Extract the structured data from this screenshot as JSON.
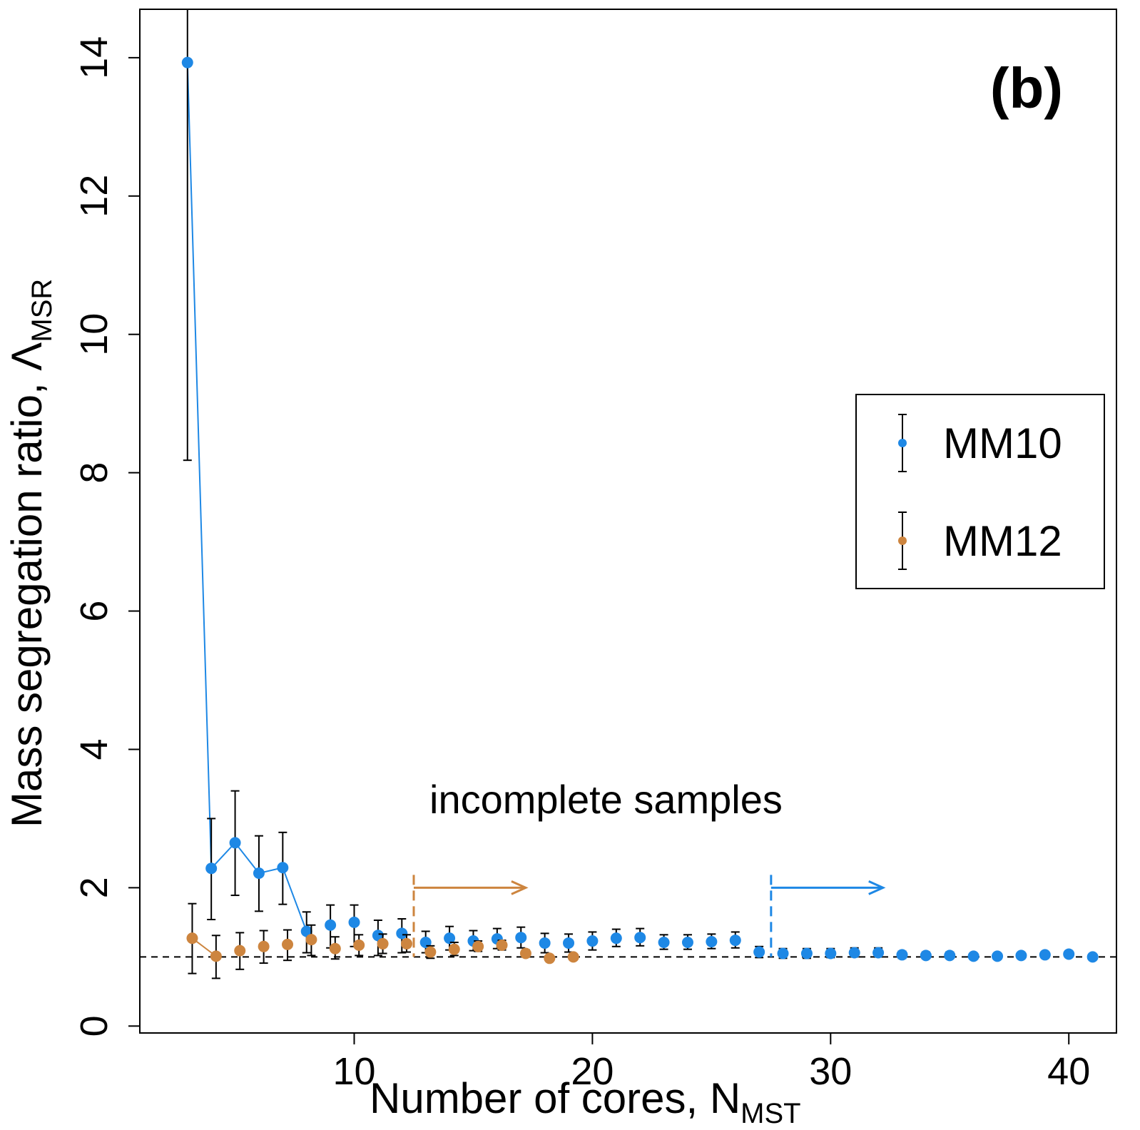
{
  "chart_data": {
    "type": "scatter",
    "panel_label": "(b)",
    "xlabel_main": "Number of cores, N",
    "xlabel_sub": "MST",
    "ylabel_main": "Mass segregation ratio, Λ",
    "ylabel_sub": "MSR",
    "xlim": [
      1.0,
      42.0
    ],
    "ylim": [
      -0.1,
      14.7
    ],
    "x_ticks": [
      10,
      20,
      30,
      40
    ],
    "y_ticks": [
      0,
      2,
      4,
      6,
      8,
      10,
      12,
      14
    ],
    "reference_line_y": 1.0,
    "annotation": "incomplete samples",
    "incomplete_markers": [
      {
        "series": "MM12",
        "x": 12.5,
        "arrow_to_x": 17.2,
        "y_top": 2.0
      },
      {
        "series": "MM10",
        "x": 27.5,
        "arrow_to_x": 32.2,
        "y_top": 2.0
      }
    ],
    "legend_position": "center-right",
    "series": [
      {
        "name": "MM10",
        "color": "#1E88E5",
        "x": [
          3,
          4,
          5,
          6,
          7,
          8,
          9,
          10,
          11,
          12,
          13,
          14,
          15,
          16,
          17,
          18,
          19,
          20,
          21,
          22,
          23,
          24,
          25,
          26,
          27,
          28,
          29,
          30,
          31,
          32,
          33,
          34,
          35,
          36,
          37,
          38,
          39,
          40,
          41
        ],
        "y": [
          13.93,
          2.28,
          2.65,
          2.21,
          2.29,
          1.37,
          1.46,
          1.5,
          1.31,
          1.34,
          1.21,
          1.27,
          1.23,
          1.26,
          1.28,
          1.2,
          1.2,
          1.23,
          1.27,
          1.28,
          1.21,
          1.21,
          1.22,
          1.24,
          1.07,
          1.05,
          1.05,
          1.05,
          1.06,
          1.06,
          1.03,
          1.02,
          1.02,
          1.01,
          1.01,
          1.02,
          1.03,
          1.04,
          1.0
        ],
        "low": [
          8.18,
          1.54,
          1.89,
          1.66,
          1.76,
          1.06,
          1.13,
          1.15,
          1.02,
          1.06,
          1.06,
          1.1,
          1.09,
          1.12,
          1.13,
          1.06,
          1.07,
          1.1,
          1.15,
          1.16,
          1.11,
          1.11,
          1.12,
          1.13,
          0.99,
          0.98,
          0.98,
          0.99,
          1.0,
          1.0,
          0.98,
          0.98,
          0.98,
          0.98,
          0.98,
          0.99,
          1.0,
          1.01,
          0.98
        ],
        "high": [
          14.7,
          3.0,
          3.4,
          2.75,
          2.8,
          1.65,
          1.75,
          1.75,
          1.53,
          1.55,
          1.37,
          1.44,
          1.38,
          1.41,
          1.43,
          1.34,
          1.33,
          1.36,
          1.4,
          1.41,
          1.32,
          1.32,
          1.33,
          1.36,
          1.15,
          1.12,
          1.12,
          1.12,
          1.13,
          1.13,
          1.08,
          1.07,
          1.07,
          1.05,
          1.05,
          1.06,
          1.07,
          1.08,
          1.03
        ],
        "connected_until_x": 8
      },
      {
        "name": "MM12",
        "color": "#CD853F",
        "x": [
          3.2,
          4.2,
          5.2,
          6.2,
          7.2,
          8.2,
          9.2,
          10.2,
          11.2,
          12.2,
          13.2,
          14.2,
          15.2,
          16.2,
          17.2,
          18.2,
          19.2
        ],
        "y": [
          1.27,
          1.01,
          1.09,
          1.15,
          1.18,
          1.25,
          1.12,
          1.17,
          1.19,
          1.19,
          1.07,
          1.11,
          1.15,
          1.17,
          1.05,
          0.98,
          1.0
        ],
        "low": [
          0.76,
          0.69,
          0.82,
          0.91,
          0.95,
          1.02,
          0.97,
          1.02,
          1.05,
          1.07,
          0.98,
          1.02,
          1.08,
          1.1,
          1.0,
          0.95,
          0.98
        ],
        "high": [
          1.77,
          1.31,
          1.35,
          1.38,
          1.39,
          1.46,
          1.29,
          1.32,
          1.33,
          1.32,
          1.16,
          1.21,
          1.23,
          1.24,
          1.1,
          1.01,
          1.02
        ],
        "connected_until_x": 4.2
      }
    ]
  }
}
